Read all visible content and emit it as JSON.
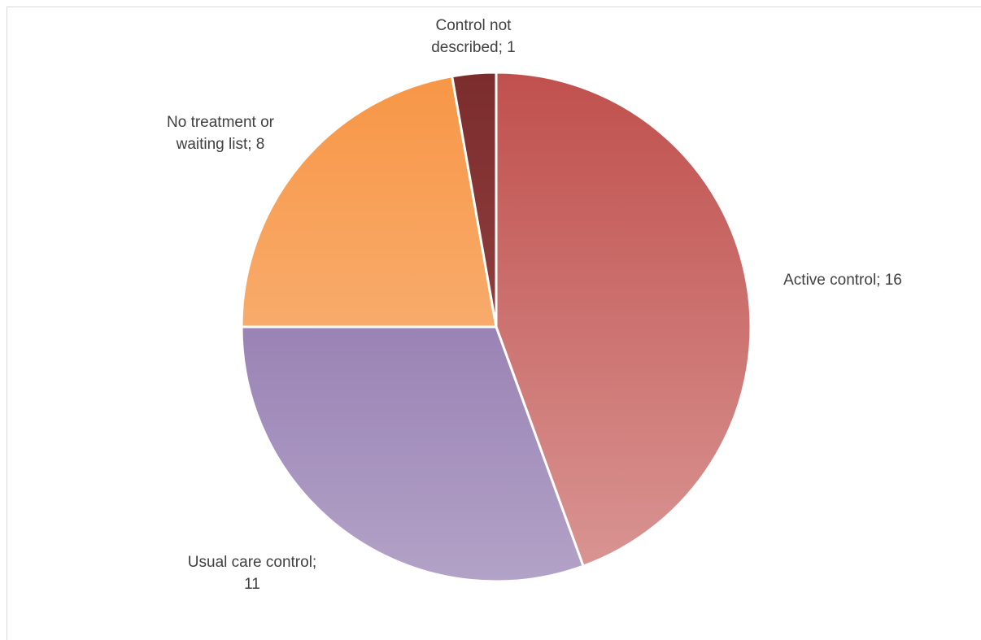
{
  "chart_data": {
    "type": "pie",
    "title": "",
    "slices": [
      {
        "label": "Active control",
        "value": 16,
        "label_lines": [
          "Active control; 16"
        ],
        "color_top": "#c0504d",
        "color_bottom": "#d99694"
      },
      {
        "label": "Usual care control",
        "value": 11,
        "label_lines": [
          "Usual care control;",
          "11"
        ],
        "color_top": "#8064a2",
        "color_bottom": "#b3a2c7"
      },
      {
        "label": "No treatment or waiting list",
        "value": 8,
        "label_lines": [
          "No treatment or",
          "waiting list; 8"
        ],
        "color_top": "#f79646",
        "color_bottom": "#fac090"
      },
      {
        "label": "Control not described",
        "value": 1,
        "label_lines": [
          "Control not",
          "described; 1"
        ],
        "color_top": "#7b2c2c",
        "color_bottom": "#a0504d"
      }
    ],
    "start_angle_deg": 0,
    "direction": "clockwise",
    "legend": "none",
    "data_labels": "category; value"
  }
}
